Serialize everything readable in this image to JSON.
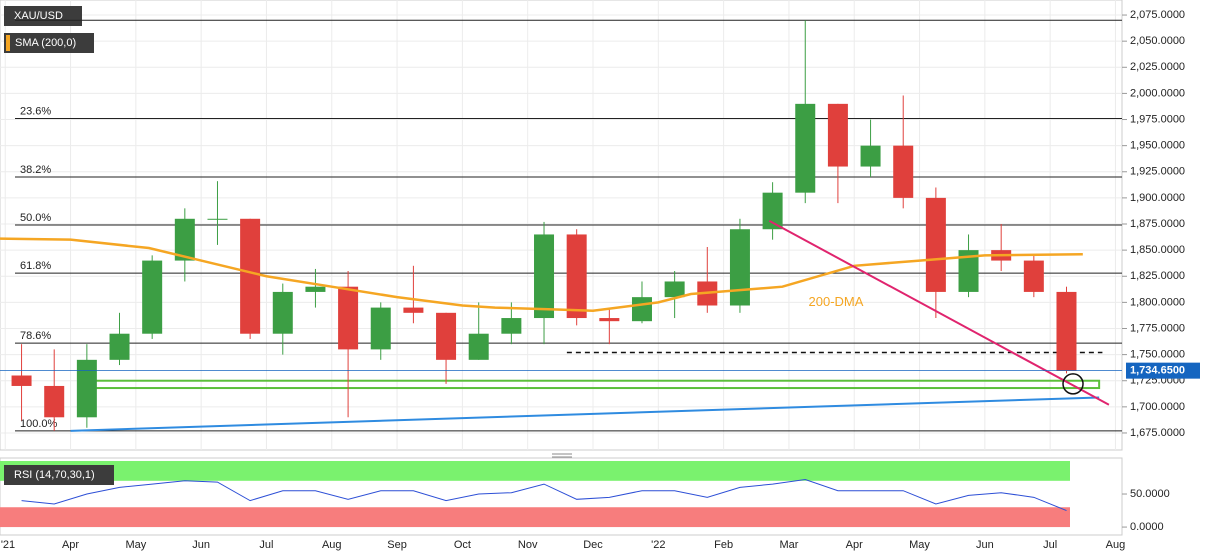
{
  "chart_data": [
    {
      "type": "candlestick",
      "title": "XAU/USD",
      "x": [
        0.25,
        0.75,
        1.25,
        1.75,
        2.25,
        2.75,
        3.25,
        3.75,
        4.25,
        4.75,
        5.25,
        5.75,
        6.25,
        6.75,
        7.25,
        7.75,
        8.25,
        8.75,
        9.25,
        9.75,
        10.25,
        10.75,
        11.25,
        11.75,
        12.25,
        12.75,
        13.25,
        13.75,
        14.25,
        14.75,
        15.25,
        15.75,
        16.25
      ],
      "open": [
        1730,
        1720,
        1690,
        1745,
        1770,
        1840,
        1880,
        1880,
        1770,
        1810,
        1815,
        1755,
        1795,
        1790,
        1745,
        1770,
        1785,
        1865,
        1785,
        1782,
        1805,
        1820,
        1797,
        1870,
        1905,
        1990,
        1930,
        1950,
        1900,
        1810,
        1850,
        1840,
        1810
      ],
      "high": [
        1760,
        1755,
        1760,
        1790,
        1845,
        1890,
        1916,
        1880,
        1818,
        1832,
        1830,
        1800,
        1835,
        1790,
        1800,
        1800,
        1877,
        1870,
        1795,
        1820,
        1830,
        1853,
        1880,
        1915,
        2070,
        1990,
        1975,
        1998,
        1910,
        1865,
        1875,
        1845,
        1815
      ],
      "low": [
        1687,
        1677,
        1680,
        1740,
        1765,
        1820,
        1855,
        1765,
        1750,
        1795,
        1690,
        1745,
        1780,
        1722,
        1745,
        1760,
        1760,
        1778,
        1760,
        1780,
        1785,
        1790,
        1790,
        1860,
        1895,
        1895,
        1920,
        1890,
        1785,
        1805,
        1830,
        1805,
        1732
      ],
      "close": [
        1720,
        1690,
        1745,
        1770,
        1840,
        1880,
        1880,
        1770,
        1810,
        1815,
        1755,
        1795,
        1790,
        1745,
        1770,
        1785,
        1865,
        1785,
        1782,
        1805,
        1820,
        1797,
        1870,
        1905,
        1990,
        1930,
        1950,
        1900,
        1810,
        1850,
        1840,
        1810,
        1734.65
      ],
      "up_color": "#3c9e44",
      "down_color": "#e0403c",
      "last_price": {
        "value": 1734.65,
        "label": "1,734.6500"
      },
      "series": [
        {
          "name": "SMA (200,0)",
          "color": "#f5a623",
          "x": [
            -0.08,
            1,
            2.2,
            3,
            4,
            5,
            6,
            7,
            7.5,
            8.5,
            9,
            10,
            10.5,
            11.9,
            13,
            14,
            15,
            16.5
          ],
          "values": [
            1861,
            1860,
            1852,
            1840,
            1825,
            1815,
            1805,
            1797,
            1795,
            1793,
            1792,
            1800,
            1808,
            1815,
            1835,
            1840,
            1845,
            1846
          ]
        }
      ],
      "fib_levels": [
        {
          "value": 2070,
          "label": ""
        },
        {
          "value": 1976,
          "label": "23.6%"
        },
        {
          "value": 1920,
          "label": "38.2%"
        },
        {
          "value": 1874,
          "label": "50.0%"
        },
        {
          "value": 1828,
          "label": "61.8%"
        },
        {
          "value": 1761,
          "label": "78.6%"
        },
        {
          "value": 1677,
          "label": "100.0%"
        }
      ],
      "dma_label": {
        "text": "200-DMA",
        "x": 12.3,
        "value": 1800
      },
      "resistance": {
        "x": [
          8.6,
          16.8
        ],
        "values": [
          1752,
          1752
        ]
      },
      "support_zone": {
        "x": [
          1.35,
          16.75
        ],
        "values": [
          1718,
          1725
        ]
      },
      "blue_trendline": {
        "x": [
          1.0,
          16.75
        ],
        "values": [
          1677,
          1709
        ]
      },
      "pink_trendline": {
        "x": [
          11.7,
          16.9
        ],
        "values": [
          1878,
          1702
        ]
      },
      "circle": {
        "x": 16.35,
        "value": 1722
      },
      "xlim": [
        -0.08,
        17.1
      ],
      "ylim": [
        1658.7,
        2089.4
      ],
      "xticks": [
        {
          "value": 0,
          "label": "'21"
        },
        {
          "value": 1,
          "label": "Apr"
        },
        {
          "value": 2,
          "label": "May"
        },
        {
          "value": 3,
          "label": "Jun"
        },
        {
          "value": 4,
          "label": "Jul"
        },
        {
          "value": 5,
          "label": "Aug"
        },
        {
          "value": 6,
          "label": "Sep"
        },
        {
          "value": 7,
          "label": "Oct"
        },
        {
          "value": 8,
          "label": "Nov"
        },
        {
          "value": 9,
          "label": "Dec"
        },
        {
          "value": 10,
          "label": "'22"
        },
        {
          "value": 11,
          "label": "Feb"
        },
        {
          "value": 12,
          "label": "Mar"
        },
        {
          "value": 13,
          "label": "Apr"
        },
        {
          "value": 14,
          "label": "May"
        },
        {
          "value": 15,
          "label": "Jun"
        },
        {
          "value": 16,
          "label": "Jul"
        },
        {
          "value": 17,
          "label": "Aug"
        }
      ],
      "yticks": [
        {
          "value": 1675,
          "label": "1,675.0000"
        },
        {
          "value": 1700,
          "label": "1,700.0000"
        },
        {
          "value": 1725,
          "label": "1,725.0000"
        },
        {
          "value": 1750,
          "label": "1,750.0000"
        },
        {
          "value": 1775,
          "label": "1,775.0000"
        },
        {
          "value": 1800,
          "label": "1,800.0000"
        },
        {
          "value": 1825,
          "label": "1,825.0000"
        },
        {
          "value": 1850,
          "label": "1,850.0000"
        },
        {
          "value": 1875,
          "label": "1,875.0000"
        },
        {
          "value": 1900,
          "label": "1,900.0000"
        },
        {
          "value": 1925,
          "label": "1,925.0000"
        },
        {
          "value": 1950,
          "label": "1,950.0000"
        },
        {
          "value": 1975,
          "label": "1,975.0000"
        },
        {
          "value": 2000,
          "label": "2,000.0000"
        },
        {
          "value": 2025,
          "label": "2,025.0000"
        },
        {
          "value": 2050,
          "label": "2,050.0000"
        },
        {
          "value": 2075,
          "label": "2,075.0000"
        }
      ],
      "grid": true
    },
    {
      "type": "line",
      "title": "RSI (14,70,30,1)",
      "series": [
        {
          "name": "RSI",
          "color": "#2d4fd6",
          "x": [
            0.25,
            0.75,
            1.25,
            1.75,
            2.25,
            2.75,
            3.25,
            3.75,
            4.25,
            4.75,
            5.25,
            5.75,
            6.25,
            6.75,
            7.25,
            7.75,
            8.25,
            8.75,
            9.25,
            9.75,
            10.25,
            10.75,
            11.25,
            11.75,
            12.25,
            12.75,
            13.25,
            13.75,
            14.25,
            14.75,
            15.25,
            15.75,
            16.25
          ],
          "values": [
            40,
            35,
            50,
            60,
            65,
            70,
            68,
            40,
            55,
            55,
            42,
            55,
            55,
            40,
            50,
            52,
            65,
            42,
            45,
            55,
            55,
            45,
            60,
            65,
            72,
            55,
            55,
            55,
            35,
            48,
            52,
            45,
            25
          ]
        }
      ],
      "overbought": [
        70,
        100
      ],
      "oversold": [
        30,
        0
      ],
      "xlim": [
        -0.08,
        17.1
      ],
      "ylim": [
        -12,
        104.5
      ],
      "yticks": [
        {
          "value": 0,
          "label": "0.0000"
        },
        {
          "value": 50,
          "label": "50.0000"
        }
      ]
    }
  ]
}
